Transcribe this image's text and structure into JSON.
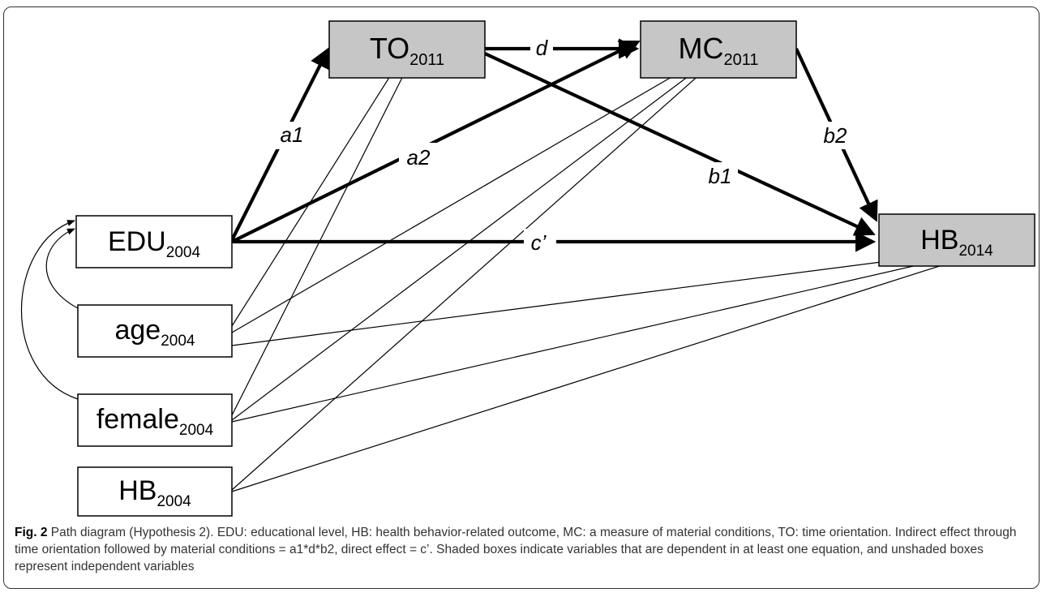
{
  "nodes": {
    "TO": {
      "name": "TO",
      "sub": "2011",
      "shaded": true
    },
    "MC": {
      "name": "MC",
      "sub": "2011",
      "shaded": true
    },
    "EDU": {
      "name": "EDU",
      "sub": "2004",
      "shaded": false
    },
    "HB14": {
      "name": "HB",
      "sub": "2014",
      "shaded": true
    },
    "AGE": {
      "name": "age",
      "sub": "2004",
      "shaded": false
    },
    "FEM": {
      "name": "female",
      "sub": "2004",
      "shaded": false
    },
    "HB04": {
      "name": "HB",
      "sub": "2004",
      "shaded": false
    }
  },
  "edge_labels": {
    "d": "d",
    "a1": "a1",
    "a2": "a2",
    "b1": "b1",
    "b2": "b2",
    "c": "c’"
  },
  "colors": {
    "shaded_fill": "#c6c6c6",
    "stroke": "#000000"
  },
  "caption": {
    "figure_label": "Fig. 2",
    "text": " Path diagram (Hypothesis 2). EDU: educational level, HB: health behavior-related outcome, MC: a measure of material conditions, TO: time orientation. Indirect effect through time orientation followed by material conditions = a1*d*b2, direct effect = c’. Shaded boxes indicate variables that are dependent in at least one equation, and unshaded boxes represent independent variables"
  }
}
